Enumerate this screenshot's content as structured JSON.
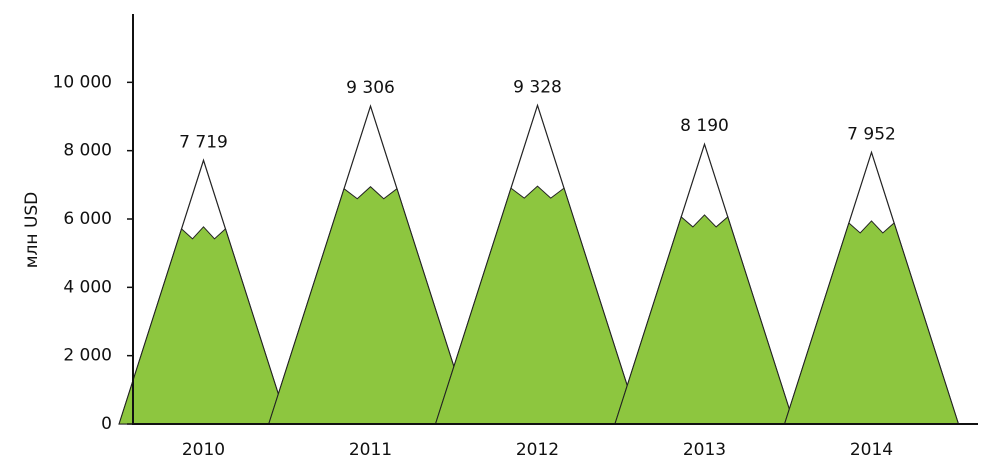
{
  "chart_data": {
    "type": "mountain",
    "y_label": "млн USD",
    "categories": [
      "2010",
      "2011",
      "2012",
      "2013",
      "2014"
    ],
    "values": [
      7719,
      9306,
      9328,
      8190,
      7952
    ],
    "value_labels": [
      "7 719",
      "9 306",
      "9 328",
      "8 190",
      "7 952"
    ],
    "color": "#8dc63f",
    "ylim": [
      0,
      12000
    ],
    "yticks": [
      0,
      {
        "value": 2000,
        "label": "2 000"
      },
      {
        "value": 4000,
        "label": "4 000"
      },
      {
        "value": 6000,
        "label": "6 000"
      },
      {
        "value": 8000,
        "label": "8 000"
      },
      {
        "value": 10000,
        "label": "10 000"
      }
    ]
  }
}
